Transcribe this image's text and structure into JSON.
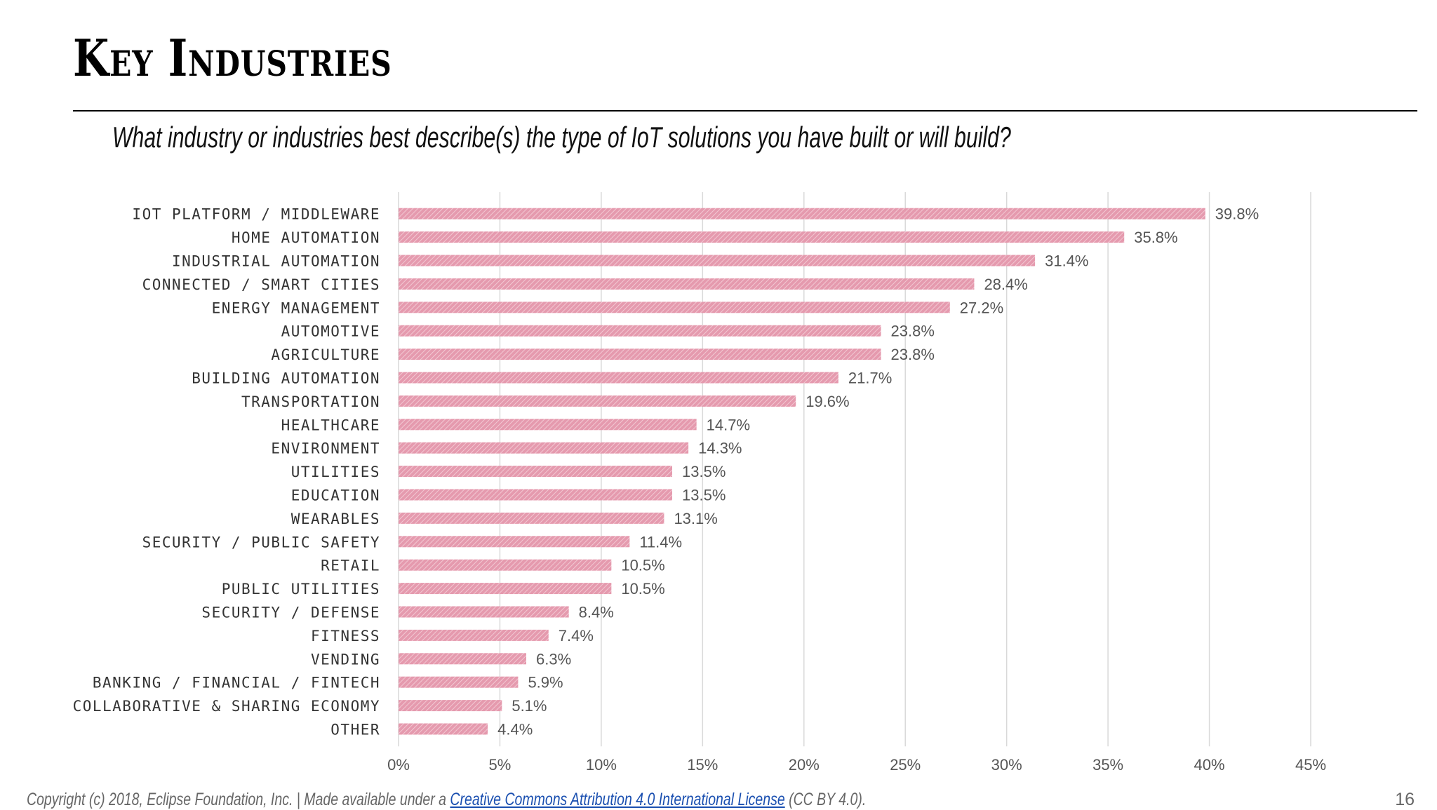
{
  "slide": {
    "title": "Key Industries",
    "question": "What industry or industries best describe(s) the type of IoT solutions you have built or will build?",
    "page_number": "16"
  },
  "footer": {
    "prefix": "Copyright (c) 2018, Eclipse Foundation, Inc. | Made available under a ",
    "link_text": "Creative Commons Attribution 4.0 International License",
    "suffix": " (CC BY 4.0)."
  },
  "colors": {
    "bar": "#e59aae",
    "bar_stripe": "#f5d3dc",
    "grid": "#d9d9d9"
  },
  "chart_data": {
    "type": "bar",
    "orientation": "horizontal",
    "categories": [
      "IOT PLATFORM / MIDDLEWARE",
      "HOME AUTOMATION",
      "INDUSTRIAL AUTOMATION",
      "CONNECTED / SMART CITIES",
      "ENERGY MANAGEMENT",
      "AUTOMOTIVE",
      "AGRICULTURE",
      "BUILDING AUTOMATION",
      "TRANSPORTATION",
      "HEALTHCARE",
      "ENVIRONMENT",
      "UTILITIES",
      "EDUCATION",
      "WEARABLES",
      "SECURITY / PUBLIC SAFETY",
      "RETAIL",
      "PUBLIC UTILITIES",
      "SECURITY / DEFENSE",
      "FITNESS",
      "VENDING",
      "BANKING / FINANCIAL / FINTECH",
      "COLLABORATIVE & SHARING ECONOMY",
      "OTHER"
    ],
    "values": [
      39.8,
      35.8,
      31.4,
      28.4,
      27.2,
      23.8,
      23.8,
      21.7,
      19.6,
      14.7,
      14.3,
      13.5,
      13.5,
      13.1,
      11.4,
      10.5,
      10.5,
      8.4,
      7.4,
      6.3,
      5.9,
      5.1,
      4.4
    ],
    "value_labels": [
      "39.8%",
      "35.8%",
      "31.4%",
      "28.4%",
      "27.2%",
      "23.8%",
      "23.8%",
      "21.7%",
      "19.6%",
      "14.7%",
      "14.3%",
      "13.5%",
      "13.5%",
      "13.1%",
      "11.4%",
      "10.5%",
      "10.5%",
      "8.4%",
      "7.4%",
      "6.3%",
      "5.9%",
      "5.1%",
      "4.4%"
    ],
    "xticks": [
      "0%",
      "5%",
      "10%",
      "15%",
      "20%",
      "25%",
      "30%",
      "35%",
      "40%",
      "45%"
    ],
    "xlim": [
      0,
      45
    ],
    "xlabel": "",
    "ylabel": "",
    "grid": true,
    "legend": "none"
  }
}
